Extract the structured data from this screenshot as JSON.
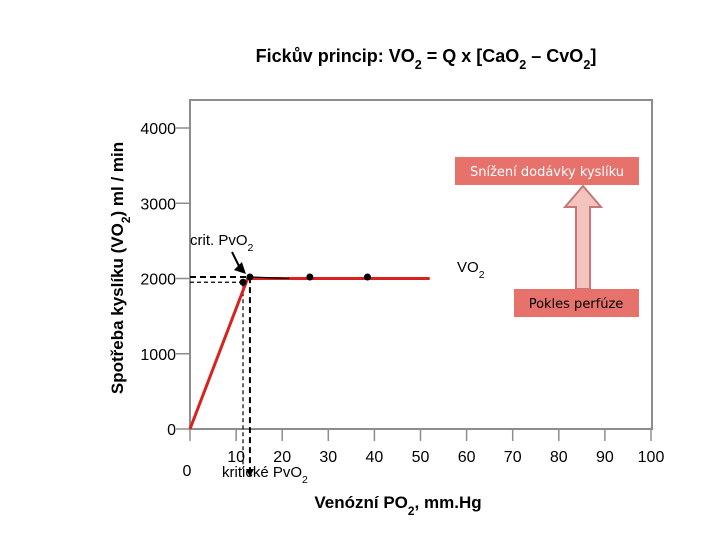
{
  "chart_data": {
    "type": "line",
    "title_parts": [
      "Fickův princip:  VO",
      "2",
      " = Q x [CaO",
      "2",
      " – CvO",
      "2",
      "]"
    ],
    "ylabel_parts": [
      "Spotřeba kyslíku (VO",
      "2",
      ") ml / min"
    ],
    "xlabel_parts": [
      "Venózní PO",
      "2",
      ", mm.Hg"
    ],
    "ylim": [
      0,
      4000
    ],
    "yticks": [
      0,
      1000,
      2000,
      3000,
      4000
    ],
    "xlim": [
      0,
      100
    ],
    "xticks": [
      10,
      20,
      30,
      40,
      50,
      60,
      70,
      80,
      90,
      100
    ],
    "x_zero_label": "0",
    "series": [
      {
        "name_parts": [
          "VO",
          "2"
        ],
        "x": [
          0,
          12.5,
          52
        ],
        "y": [
          0,
          2000,
          2000
        ]
      }
    ],
    "points": [
      {
        "x": 11.5,
        "y": 1950
      },
      {
        "x": 13,
        "y": 2020
      },
      {
        "x": 26,
        "y": 2020
      },
      {
        "x": 38.5,
        "y": 2020
      }
    ],
    "secondary_line": {
      "x": [
        13,
        21.5
      ],
      "y": [
        2020,
        2000
      ]
    },
    "annotations": {
      "crit_label_parts": [
        "crit. PvO",
        "2"
      ],
      "critical_label_parts": [
        "kritické PvO",
        "2"
      ],
      "box_decrease_delivery": "Snížení dodávky kyslíku",
      "box_perfusion_drop": "Pokles perfúze"
    },
    "colors": {
      "line": "#d9211e",
      "box_fill": "#e7716b",
      "box_text": "#ffffff",
      "box_text_2": "#000000",
      "arrow_fill": "#f2c4bd",
      "arrow_stroke": "#c7777a",
      "frame": "#8d8d8d",
      "point": "#000000"
    },
    "grid": false
  }
}
